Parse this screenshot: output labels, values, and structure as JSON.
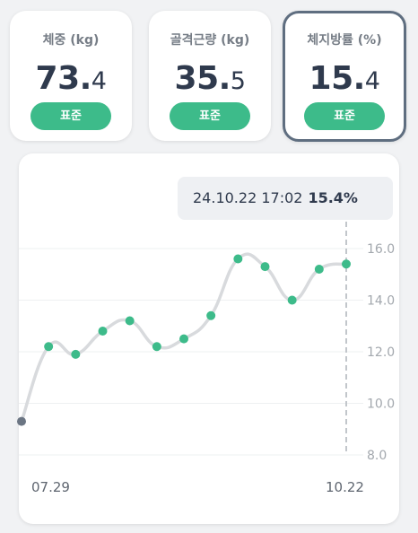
{
  "metrics": [
    {
      "label": "체중 (kg)",
      "int": "73.",
      "dec": "4",
      "badge": "표준",
      "selected": false
    },
    {
      "label": "골격근량 (kg)",
      "int": "35.",
      "dec": "5",
      "badge": "표준",
      "selected": false
    },
    {
      "label": "체지방률 (%)",
      "int": "15.",
      "dec": "4",
      "badge": "표준",
      "selected": true
    }
  ],
  "tooltip": {
    "datetime": "24.10.22 17:02",
    "value": "15.4%"
  },
  "colors": {
    "accent": "#3dbb8a",
    "first_point": "#6b7583",
    "line": "#d8dadd",
    "selected_border": "#5f6e80"
  },
  "chart_data": {
    "type": "line",
    "x_labels": [
      "07.29",
      "10.22"
    ],
    "ylim": [
      8.0,
      16.0
    ],
    "yticks": [
      "16.0",
      "14.0",
      "12.0",
      "10.0",
      "8.0"
    ],
    "grid": true,
    "series": [
      {
        "values": [
          9.3,
          12.2,
          11.9,
          12.8,
          13.2,
          12.2,
          12.5,
          13.4,
          15.6,
          15.3,
          14.0,
          15.2,
          15.4
        ]
      }
    ]
  }
}
